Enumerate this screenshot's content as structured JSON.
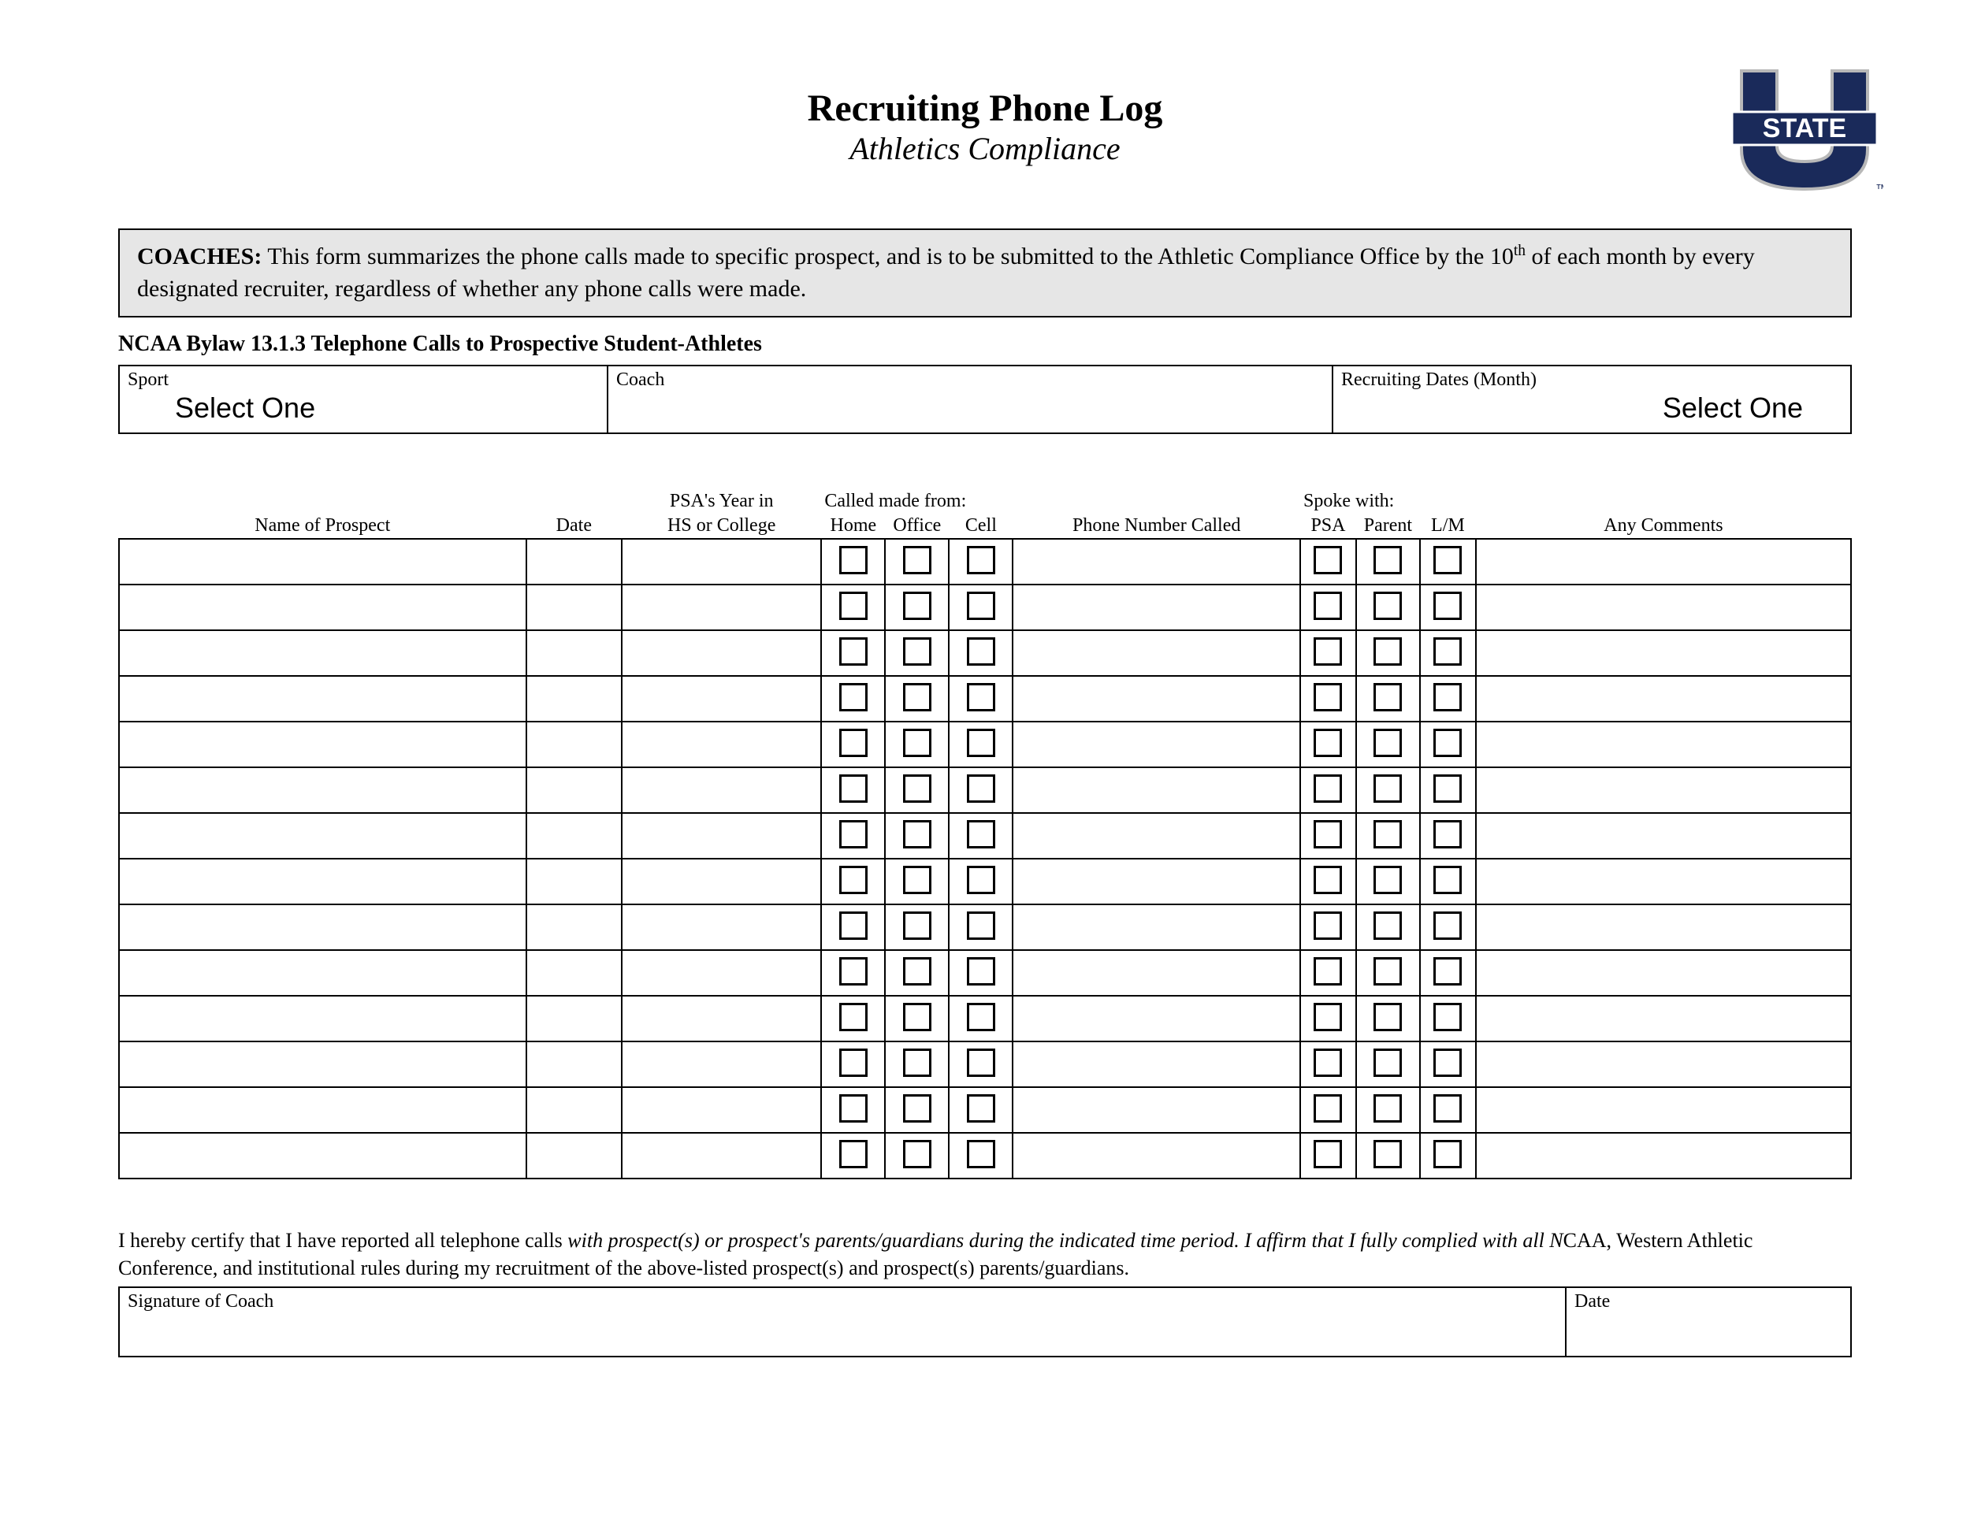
{
  "header": {
    "title": "Recruiting Phone Log",
    "subtitle": "Athletics Compliance",
    "logo_text_top": "U",
    "logo_text_mid": "STATE",
    "logo_colors": {
      "navy": "#1a2a5a",
      "white": "#ffffff",
      "gray": "#b8b8b8"
    }
  },
  "coaches_note": {
    "label": "COACHES:",
    "text_before_sup": " This form summarizes the phone calls made to specific prospect, and is to be submitted to the Athletic Compliance Office by the 10",
    "sup": "th",
    "text_after_sup": " of each month by every designated recruiter, regardless of whether any phone calls were made."
  },
  "bylaw": "NCAA Bylaw 13.1.3 Telephone Calls to Prospective Student-Athletes",
  "info": {
    "sport_label": "Sport",
    "sport_value": "Select One",
    "coach_label": "Coach",
    "coach_value": "",
    "dates_label": "Recruiting Dates (Month)",
    "dates_value": "Select One"
  },
  "table": {
    "headers": {
      "name": "Name of Prospect",
      "date": "Date",
      "psa_year_line1": "PSA's Year in",
      "psa_year_line2": "HS or College",
      "called_from": "Called made from:",
      "home": "Home",
      "office": "Office",
      "cell": "Cell",
      "phone": "Phone Number Called",
      "spoke_with": "Spoke with:",
      "s_psa": "PSA",
      "s_parent": "Parent",
      "s_lm": "L/M",
      "comments": "Any Comments"
    },
    "row_count": 14
  },
  "certification": {
    "part1": "I hereby certify that I have reported all telephone calls ",
    "ital1": "with prospect(s) or prospect's parents/guardians during the indicated time period.  I affirm that I fully complied with all N",
    "part2": "CAA, Western Athletic Conference, and institutional rules during my recruitment of the above-listed prospect(s) and prospect(s) parents/guardians."
  },
  "signature": {
    "coach_label": "Signature of Coach",
    "date_label": "Date"
  }
}
